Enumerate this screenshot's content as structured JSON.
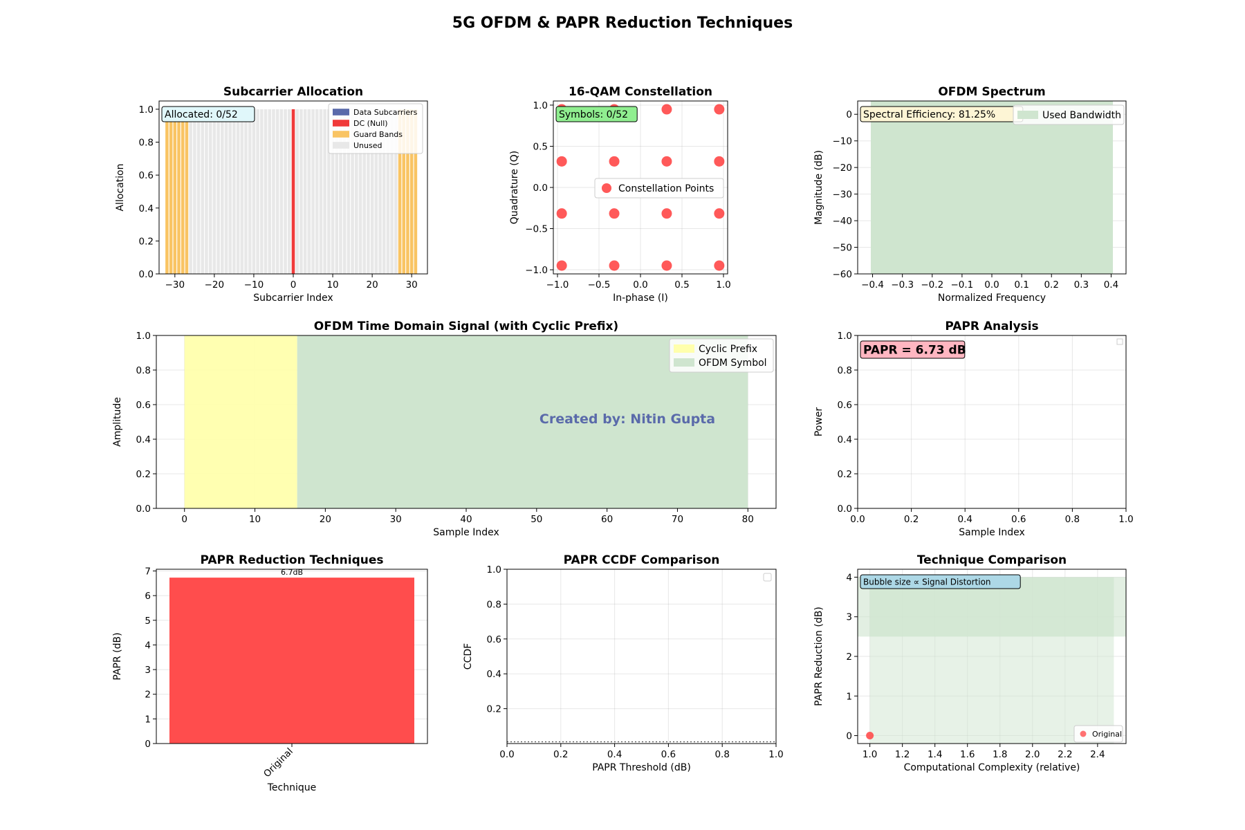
{
  "suptitle": "5G OFDM & PAPR Reduction Techniques",
  "watermark": "Created by: Nitin Gupta",
  "colors": {
    "data": "#5a6aaa",
    "dc": "#f03a3a",
    "guard": "#f9c463",
    "unused": "#e8e8e8",
    "constellation": "#ff3030",
    "used_bw": "#cfe5cf",
    "cyclic_prefix": "#ffffad",
    "ofdm_symbol": "#cfe5cf",
    "bar": "#ff4d4d",
    "badge_alloc": "#e0f7fa",
    "badge_symbols": "#90ee90",
    "badge_eff": "#fdf5d5",
    "badge_papr": "#ffb6c1",
    "badge_bubble": "#add8e6",
    "watermark": "#5a6aaa"
  },
  "chart_data": [
    {
      "id": "subcarrier",
      "type": "bar",
      "title": "Subcarrier Allocation",
      "xlabel": "Subcarrier Index",
      "ylabel": "Allocation",
      "xlim": [
        -34,
        34
      ],
      "ylim": [
        0,
        1.05
      ],
      "xticks": [
        -30,
        -20,
        -10,
        0,
        10,
        20,
        30
      ],
      "yticks": [
        0.0,
        0.2,
        0.4,
        0.6,
        0.8,
        1.0
      ],
      "x": [
        -32,
        31
      ],
      "guard_ranges": [
        [
          -32,
          -27
        ],
        [
          27,
          31
        ]
      ],
      "dc_index": 0,
      "value": 1.0,
      "badge": "Allocated: 0/52",
      "legend": [
        "Data Subcarriers",
        "DC (Null)",
        "Guard Bands",
        "Unused"
      ],
      "legend_position": "top-right"
    },
    {
      "id": "constellation",
      "type": "scatter",
      "title": "16-QAM Constellation",
      "xlabel": "In-phase (I)",
      "ylabel": "Quadrature (Q)",
      "xlim": [
        -1.05,
        1.05
      ],
      "ylim": [
        -1.05,
        1.05
      ],
      "xticks": [
        -1.0,
        -0.5,
        0.0,
        0.5,
        1.0
      ],
      "yticks": [
        -1.0,
        -0.5,
        0.0,
        0.5,
        1.0
      ],
      "levels": [
        -0.9487,
        -0.3162,
        0.3162,
        0.9487
      ],
      "badge": "Symbols: 0/52",
      "legend": [
        "Constellation Points"
      ],
      "legend_position": "center-right",
      "grid": true
    },
    {
      "id": "spectrum",
      "type": "area",
      "title": "OFDM Spectrum",
      "xlabel": "Normalized Frequency",
      "ylabel": "Magnitude (dB)",
      "xlim": [
        -0.45,
        0.45
      ],
      "ylim": [
        -60,
        5
      ],
      "xticks": [
        -0.4,
        -0.3,
        -0.2,
        -0.1,
        0.0,
        0.1,
        0.2,
        0.3,
        0.4
      ],
      "yticks": [
        0,
        -10,
        -20,
        -30,
        -40,
        -50,
        -60
      ],
      "band": [
        -0.406,
        0.406
      ],
      "badge": "Spectral Efficiency: 81.25%",
      "legend": [
        "Used Bandwidth"
      ],
      "legend_position": "top-right",
      "grid": true
    },
    {
      "id": "time_domain",
      "type": "area",
      "title": "OFDM Time Domain Signal (with Cyclic Prefix)",
      "xlabel": "Sample Index",
      "ylabel": "Amplitude",
      "xlim": [
        -4,
        84
      ],
      "ylim": [
        0,
        1
      ],
      "xticks": [
        0,
        10,
        20,
        30,
        40,
        50,
        60,
        70,
        80
      ],
      "yticks": [
        0.0,
        0.2,
        0.4,
        0.6,
        0.8,
        1.0
      ],
      "cyclic_prefix": [
        0,
        16
      ],
      "symbol": [
        16,
        80
      ],
      "legend": [
        "Cyclic Prefix",
        "OFDM Symbol"
      ],
      "legend_position": "top-right",
      "grid": true
    },
    {
      "id": "papr_analysis",
      "type": "line",
      "title": "PAPR Analysis",
      "xlabel": "Sample Index",
      "ylabel": "Power",
      "xlim": [
        0,
        1
      ],
      "ylim": [
        0,
        1
      ],
      "xticks": [
        0.0,
        0.2,
        0.4,
        0.6,
        0.8,
        1.0
      ],
      "yticks": [
        0.0,
        0.2,
        0.4,
        0.6,
        0.8,
        1.0
      ],
      "badge": "PAPR = 6.73 dB",
      "grid": true
    },
    {
      "id": "papr_techniques",
      "type": "bar",
      "title": "PAPR Reduction Techniques",
      "xlabel": "Technique",
      "ylabel": "PAPR (dB)",
      "categories": [
        "Original"
      ],
      "values": [
        6.73
      ],
      "data_labels": [
        "6.7dB"
      ],
      "ylim": [
        0,
        7.07
      ],
      "yticks": [
        0,
        1,
        2,
        3,
        4,
        5,
        6,
        7
      ],
      "grid": true
    },
    {
      "id": "ccdf",
      "type": "line",
      "title": "PAPR CCDF Comparison",
      "xlabel": "PAPR Threshold (dB)",
      "ylabel": "CCDF",
      "xlim": [
        0,
        1
      ],
      "ylim": [
        0,
        1
      ],
      "xticks": [
        0.0,
        0.2,
        0.4,
        0.6,
        0.8,
        1.0
      ],
      "yticks": [
        0.2,
        0.4,
        0.6,
        0.8,
        1.0
      ],
      "reference_level": 0.01,
      "grid": true
    },
    {
      "id": "technique_comparison",
      "type": "scatter",
      "title": "Technique Comparison",
      "xlabel": "Computational Complexity (relative)",
      "ylabel": "PAPR Reduction (dB)",
      "xlim": [
        0.925,
        2.575
      ],
      "ylim": [
        -0.2,
        4.2
      ],
      "xticks": [
        1.0,
        1.2,
        1.4,
        1.6,
        1.8,
        2.0,
        2.2,
        2.4
      ],
      "yticks": [
        0,
        1,
        2,
        3,
        4
      ],
      "region_outer": {
        "x": [
          1.0,
          2.5
        ],
        "y": [
          -0.2,
          4.0
        ]
      },
      "region_inner": {
        "x": [
          1.0,
          2.5
        ],
        "y": [
          2.5,
          4.0
        ]
      },
      "points": [
        {
          "name": "Original",
          "x": 1.0,
          "y": 0.0
        }
      ],
      "badge": "Bubble size ∝ Signal Distortion",
      "legend": [
        "Original"
      ],
      "legend_position": "bottom-right",
      "grid": true
    }
  ]
}
